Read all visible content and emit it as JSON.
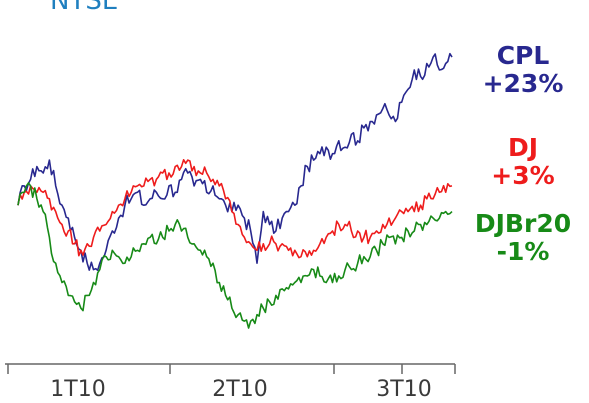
{
  "chart_data": {
    "type": "line",
    "title": "NYSE",
    "xlabel": "",
    "ylabel": "",
    "x_ticks": [
      "1T10",
      "2T10",
      "3T10"
    ],
    "grid": false,
    "legend": "right, inline labels with final change",
    "x_range": [
      "early 2010 Q1",
      "late 2010 Q3"
    ],
    "y_range_percent": [
      -20,
      30
    ],
    "series": [
      {
        "name": "CPL",
        "change": "+23%",
        "color": "#28288f",
        "values": [
          0,
          3,
          4,
          6,
          5,
          7,
          3,
          0,
          -2,
          -5,
          -7,
          -9,
          -10,
          -9,
          -7,
          -4,
          -2,
          0,
          1,
          2,
          0,
          1,
          2,
          1,
          3,
          2,
          4,
          5,
          3,
          4,
          2,
          3,
          1,
          0,
          -1,
          0,
          -2,
          -4,
          -9,
          -1,
          -3,
          -4,
          -2,
          -1,
          0,
          3,
          6,
          7,
          8,
          9,
          8,
          10,
          9,
          11,
          10,
          12,
          13,
          14,
          15,
          14,
          13,
          16,
          18,
          21,
          20,
          22,
          23,
          21,
          22,
          23
        ]
      },
      {
        "name": "DJ",
        "change": "+3%",
        "color": "#ee1c1c",
        "values": [
          0,
          2,
          3,
          2,
          2,
          1,
          -1,
          -3,
          -4,
          -6,
          -7,
          -6,
          -5,
          -4,
          -3,
          -1,
          0,
          1,
          2,
          3,
          3,
          4,
          4,
          5,
          5,
          6,
          6,
          7,
          6,
          5,
          5,
          4,
          3,
          1,
          -1,
          -3,
          -5,
          -6,
          -7,
          -6,
          -6,
          -6,
          -6,
          -7,
          -7,
          -8,
          -8,
          -7,
          -6,
          -5,
          -4,
          -3,
          -3,
          -4,
          -4,
          -5,
          -5,
          -4,
          -3,
          -2,
          -2,
          -1,
          -1,
          -1,
          0,
          1,
          1,
          2,
          2,
          3
        ]
      },
      {
        "name": "DJBr20",
        "change": "-1%",
        "color": "#178a17",
        "values": [
          0,
          2,
          3,
          1,
          -1,
          -5,
          -9,
          -12,
          -14,
          -15,
          -16,
          -14,
          -12,
          -10,
          -8,
          -7,
          -8,
          -9,
          -8,
          -7,
          -6,
          -5,
          -6,
          -5,
          -4,
          -3,
          -4,
          -5,
          -6,
          -7,
          -8,
          -9,
          -12,
          -14,
          -16,
          -17,
          -18,
          -18,
          -17,
          -16,
          -15,
          -14,
          -13,
          -13,
          -12,
          -12,
          -11,
          -10,
          -11,
          -12,
          -12,
          -11,
          -10,
          -10,
          -9,
          -8,
          -8,
          -7,
          -6,
          -5,
          -6,
          -5,
          -4,
          -4,
          -3,
          -3,
          -2,
          -2,
          -1,
          -1
        ]
      }
    ]
  }
}
